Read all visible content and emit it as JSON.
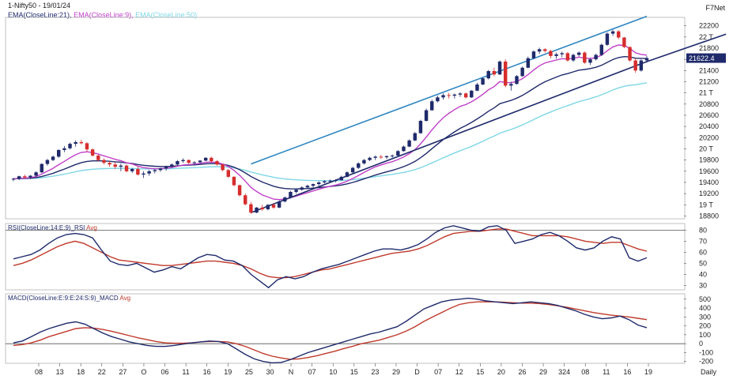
{
  "header": {
    "symbol": "1-Nifty50 - 19/01/24",
    "vendor": "F7Net",
    "ema21": "EMA(CloseLine:21),",
    "ema9": "EMA(CloseLine:9),",
    "ema50": "EMA(CloseLine:50)"
  },
  "colors": {
    "ema21": "#1f2a6b",
    "ema9": "#c040c8",
    "ema50": "#7fd7e6",
    "upper_channel": "#2e86c1",
    "lower_channel": "#1f2a6b",
    "bull": "#1f2a6b",
    "bear": "#d62d2d",
    "avg_line": "#c0392b"
  },
  "chart_data": [
    {
      "type": "candlestick",
      "panel": "price",
      "last_price_label": "21622.4",
      "yticks": [
        "22200",
        "22 T",
        "21800",
        "21600",
        "21400",
        "21200",
        "21 T",
        "20800",
        "20600",
        "20400",
        "20200",
        "20 T",
        "19800",
        "19600",
        "19400",
        "19200",
        "19 T",
        "18800"
      ],
      "ylim": [
        18750,
        22350
      ],
      "candles": [
        [
          19450,
          19480,
          19420,
          19465
        ],
        [
          19465,
          19520,
          19440,
          19510
        ],
        [
          19510,
          19540,
          19470,
          19490
        ],
        [
          19490,
          19530,
          19460,
          19520
        ],
        [
          19520,
          19600,
          19500,
          19580
        ],
        [
          19580,
          19740,
          19570,
          19730
        ],
        [
          19730,
          19820,
          19700,
          19800
        ],
        [
          19800,
          19880,
          19780,
          19860
        ],
        [
          19860,
          19990,
          19840,
          19980
        ],
        [
          19980,
          20050,
          19940,
          20010
        ],
        [
          20010,
          20110,
          19990,
          20090
        ],
        [
          20090,
          20150,
          20040,
          20120
        ],
        [
          20120,
          20160,
          20080,
          20100
        ],
        [
          20100,
          20120,
          19950,
          19990
        ],
        [
          19990,
          20010,
          19860,
          19880
        ],
        [
          19880,
          19900,
          19780,
          19800
        ],
        [
          19800,
          19830,
          19720,
          19750
        ],
        [
          19750,
          19780,
          19680,
          19720
        ],
        [
          19720,
          19760,
          19640,
          19680
        ],
        [
          19680,
          19740,
          19600,
          19700
        ],
        [
          19700,
          19720,
          19580,
          19600
        ],
        [
          19600,
          19660,
          19570,
          19640
        ],
        [
          19640,
          19680,
          19520,
          19540
        ],
        [
          19540,
          19600,
          19480,
          19560
        ],
        [
          19560,
          19620,
          19520,
          19600
        ],
        [
          19600,
          19640,
          19560,
          19620
        ],
        [
          19620,
          19660,
          19590,
          19650
        ],
        [
          19650,
          19700,
          19610,
          19680
        ],
        [
          19680,
          19740,
          19660,
          19720
        ],
        [
          19720,
          19800,
          19700,
          19780
        ],
        [
          19780,
          19830,
          19750,
          19800
        ],
        [
          19800,
          19810,
          19730,
          19750
        ],
        [
          19750,
          19780,
          19700,
          19760
        ],
        [
          19760,
          19800,
          19740,
          19790
        ],
        [
          19790,
          19850,
          19780,
          19840
        ],
        [
          19840,
          19860,
          19760,
          19780
        ],
        [
          19780,
          19800,
          19700,
          19720
        ],
        [
          19720,
          19730,
          19600,
          19620
        ],
        [
          19620,
          19640,
          19480,
          19500
        ],
        [
          19500,
          19510,
          19330,
          19350
        ],
        [
          19350,
          19360,
          19150,
          19170
        ],
        [
          19170,
          19200,
          18990,
          19010
        ],
        [
          19010,
          19050,
          18840,
          18860
        ],
        [
          18860,
          18960,
          18850,
          18950
        ],
        [
          18950,
          19000,
          18890,
          18920
        ],
        [
          18920,
          19010,
          18900,
          19000
        ],
        [
          19000,
          19030,
          18930,
          18950
        ],
        [
          18950,
          19080,
          18940,
          19060
        ],
        [
          19060,
          19150,
          19040,
          19130
        ],
        [
          19130,
          19250,
          19110,
          19230
        ],
        [
          19230,
          19290,
          19200,
          19270
        ],
        [
          19270,
          19330,
          19250,
          19310
        ],
        [
          19310,
          19360,
          19280,
          19340
        ],
        [
          19340,
          19380,
          19310,
          19370
        ],
        [
          19370,
          19420,
          19340,
          19400
        ],
        [
          19400,
          19440,
          19380,
          19420
        ],
        [
          19420,
          19450,
          19390,
          19430
        ],
        [
          19430,
          19460,
          19400,
          19440
        ],
        [
          19440,
          19520,
          19430,
          19500
        ],
        [
          19500,
          19600,
          19490,
          19580
        ],
        [
          19580,
          19680,
          19560,
          19660
        ],
        [
          19660,
          19760,
          19640,
          19740
        ],
        [
          19740,
          19820,
          19720,
          19800
        ],
        [
          19800,
          19860,
          19780,
          19840
        ],
        [
          19840,
          19880,
          19800,
          19860
        ],
        [
          19860,
          19890,
          19820,
          19850
        ],
        [
          19850,
          19880,
          19820,
          19870
        ],
        [
          19870,
          19900,
          19840,
          19880
        ],
        [
          19880,
          19980,
          19870,
          19960
        ],
        [
          19960,
          20060,
          19950,
          20040
        ],
        [
          20040,
          20170,
          20030,
          20150
        ],
        [
          20150,
          20300,
          20140,
          20280
        ],
        [
          20280,
          20520,
          20270,
          20500
        ],
        [
          20500,
          20720,
          20490,
          20690
        ],
        [
          20690,
          20880,
          20680,
          20850
        ],
        [
          20850,
          20950,
          20830,
          20920
        ],
        [
          20920,
          20990,
          20880,
          20960
        ],
        [
          20960,
          21000,
          20900,
          20950
        ],
        [
          20950,
          20990,
          20900,
          20970
        ],
        [
          20970,
          21010,
          20930,
          20990
        ],
        [
          20990,
          21010,
          20900,
          20920
        ],
        [
          20920,
          21050,
          20910,
          21040
        ],
        [
          21040,
          21180,
          21030,
          21150
        ],
        [
          21150,
          21280,
          21140,
          21260
        ],
        [
          21260,
          21410,
          21240,
          21390
        ],
        [
          21390,
          21450,
          21300,
          21330
        ],
        [
          21330,
          21580,
          21320,
          21560
        ],
        [
          21560,
          21600,
          21100,
          21130
        ],
        [
          21130,
          21200,
          21040,
          21160
        ],
        [
          21160,
          21320,
          21150,
          21300
        ],
        [
          21300,
          21470,
          21290,
          21450
        ],
        [
          21450,
          21650,
          21440,
          21620
        ],
        [
          21620,
          21760,
          21600,
          21740
        ],
        [
          21740,
          21810,
          21700,
          21780
        ],
        [
          21780,
          21800,
          21720,
          21750
        ],
        [
          21750,
          21770,
          21620,
          21660
        ],
        [
          21660,
          21720,
          21610,
          21690
        ],
        [
          21690,
          21740,
          21640,
          21710
        ],
        [
          21710,
          21730,
          21560,
          21580
        ],
        [
          21580,
          21700,
          21560,
          21680
        ],
        [
          21680,
          21740,
          21650,
          21720
        ],
        [
          21720,
          21740,
          21520,
          21540
        ],
        [
          21540,
          21620,
          21500,
          21600
        ],
        [
          21600,
          21700,
          21580,
          21680
        ],
        [
          21680,
          21880,
          21660,
          21860
        ],
        [
          21860,
          22080,
          21840,
          22060
        ],
        [
          22060,
          22130,
          22020,
          22100
        ],
        [
          22100,
          22120,
          21960,
          21990
        ],
        [
          21990,
          22000,
          21800,
          21820
        ],
        [
          21820,
          21830,
          21560,
          21580
        ],
        [
          21580,
          21620,
          21360,
          21400
        ],
        [
          21400,
          21600,
          21380,
          21580
        ],
        [
          21580,
          21660,
          21540,
          21622
        ]
      ],
      "trendlines": [
        {
          "name": "upper",
          "from": [
            42,
            19730
          ],
          "to": [
            112,
            22370
          ]
        },
        {
          "name": "lower",
          "from": [
            42,
            18860
          ],
          "to": [
            112,
            21560
          ]
        },
        {
          "name": "lower_ext",
          "from": [
            112,
            21560
          ],
          "to": [
            126,
            22050
          ]
        }
      ]
    },
    {
      "type": "line",
      "panel": "rsi",
      "title": "RSI(CloseLine:14:E:9)_RSI",
      "avg_label": "Avg",
      "yticks": [
        "80",
        "70",
        "60",
        "50",
        "40",
        "30"
      ],
      "ylim": [
        26,
        86
      ],
      "reference": 80,
      "series": [
        {
          "values": [
            54,
            56,
            58,
            62,
            68,
            73,
            76,
            77,
            76,
            73,
            62,
            52,
            49,
            48,
            50,
            46,
            42,
            44,
            47,
            45,
            50,
            55,
            58,
            57,
            53,
            52,
            48,
            40,
            34,
            28,
            35,
            38,
            36,
            38,
            42,
            45,
            47,
            49,
            52,
            55,
            58,
            61,
            63,
            63,
            62,
            64,
            67,
            72,
            78,
            82,
            84,
            82,
            80,
            79,
            83,
            84,
            80,
            68,
            70,
            72,
            76,
            78,
            75,
            70,
            64,
            62,
            64,
            70,
            74,
            72,
            55,
            52,
            55
          ]
        },
        {
          "values": [
            48,
            50,
            53,
            57,
            61,
            65,
            68,
            70,
            68,
            64,
            60,
            56,
            53,
            52,
            51,
            50,
            49,
            48,
            48,
            49,
            50,
            51,
            52,
            52,
            51,
            50,
            48,
            45,
            41,
            38,
            37,
            37,
            38,
            40,
            42,
            44,
            45,
            47,
            49,
            51,
            53,
            55,
            57,
            59,
            60,
            61,
            63,
            66,
            70,
            74,
            77,
            78,
            79,
            79,
            80,
            81,
            81,
            79,
            77,
            75,
            75,
            75,
            75,
            74,
            72,
            70,
            69,
            68,
            69,
            69,
            66,
            63,
            61
          ]
        }
      ]
    },
    {
      "type": "line",
      "panel": "macd",
      "title": "MACD(CloseLine:E:9:E:24:S:9)_MACD",
      "avg_label": "Avg",
      "yticks": [
        "500",
        "400",
        "300",
        "200",
        "100",
        "0",
        "-100",
        "-200"
      ],
      "ylim": [
        -220,
        560
      ],
      "reference": 0,
      "series": [
        {
          "values": [
            10,
            30,
            80,
            130,
            170,
            200,
            230,
            245,
            220,
            170,
            120,
            80,
            50,
            20,
            0,
            -20,
            -30,
            -30,
            -20,
            -5,
            10,
            20,
            30,
            25,
            0,
            -60,
            -120,
            -170,
            -200,
            -215,
            -210,
            -180,
            -140,
            -100,
            -70,
            -40,
            -10,
            20,
            50,
            80,
            110,
            130,
            160,
            190,
            250,
            320,
            390,
            430,
            470,
            490,
            500,
            510,
            500,
            480,
            470,
            460,
            450,
            460,
            470,
            460,
            450,
            430,
            400,
            370,
            330,
            300,
            280,
            290,
            310,
            270,
            210,
            180
          ]
        },
        {
          "values": [
            -20,
            -10,
            10,
            40,
            80,
            110,
            140,
            170,
            180,
            175,
            160,
            140,
            115,
            90,
            65,
            45,
            25,
            10,
            5,
            5,
            10,
            20,
            25,
            25,
            20,
            0,
            -30,
            -70,
            -110,
            -140,
            -160,
            -175,
            -170,
            -155,
            -135,
            -110,
            -85,
            -55,
            -30,
            0,
            20,
            40,
            70,
            100,
            140,
            190,
            250,
            300,
            350,
            400,
            440,
            460,
            470,
            470,
            470,
            465,
            460,
            455,
            455,
            450,
            440,
            425,
            410,
            390,
            370,
            350,
            335,
            320,
            310,
            300,
            285,
            270
          ]
        }
      ]
    }
  ],
  "xaxis": {
    "labels": [
      "08",
      "13",
      "18",
      "22",
      "27",
      "O",
      "06",
      "11",
      "16",
      "19",
      "25",
      "30",
      "N",
      "07",
      "10",
      "15",
      "23",
      "29",
      "D",
      "07",
      "12",
      "15",
      "20",
      "26",
      "29",
      "324",
      "08",
      "11",
      "16",
      "19"
    ],
    "period": "Daily"
  }
}
